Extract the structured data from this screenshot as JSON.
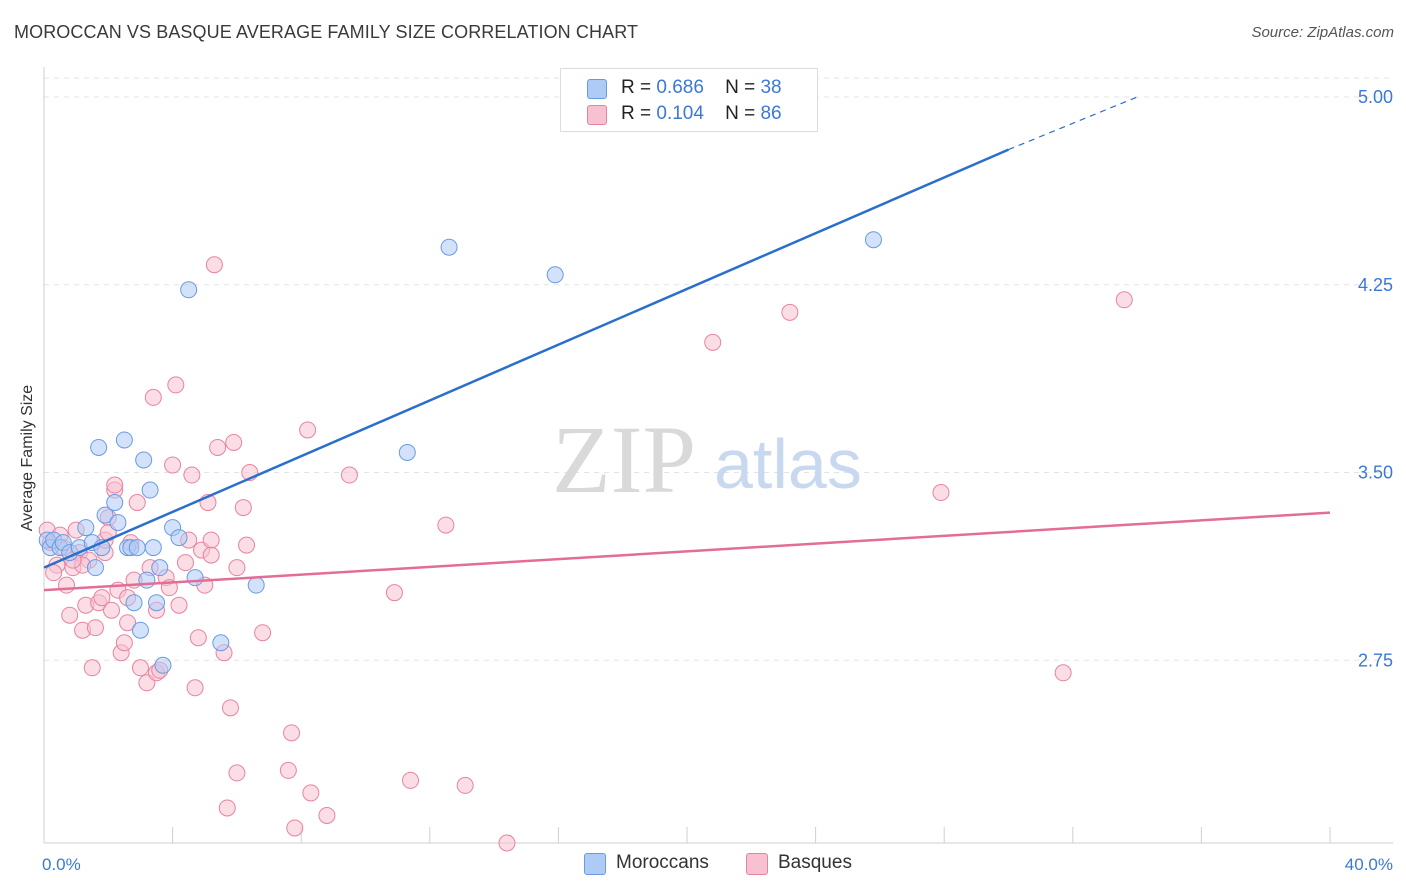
{
  "title": "MOROCCAN VS BASQUE AVERAGE FAMILY SIZE CORRELATION CHART",
  "source": "Source: ZipAtlas.com",
  "watermark": {
    "zip": "ZIP",
    "atlas": "atlas"
  },
  "legend_top": [
    {
      "r_label": "R =",
      "r_value": "0.686",
      "n_label": "N =",
      "n_value": "38"
    },
    {
      "r_label": "R =",
      "r_value": "0.104",
      "n_label": "N =",
      "n_value": "86"
    }
  ],
  "colors": {
    "moroccan_fill": "#aecbf5",
    "moroccan_stroke": "#6a9be0",
    "moroccan_line": "#2a6fcc",
    "basque_fill": "#f8c1d2",
    "basque_stroke": "#e8839f",
    "basque_line": "#e36d96",
    "tick_text": "#3b78d8",
    "grid": "#e3e3e3"
  },
  "chart_data": {
    "type": "scatter",
    "title": "MOROCCAN VS BASQUE AVERAGE FAMILY SIZE CORRELATION CHART",
    "xlabel": "",
    "ylabel": "Average Family Size",
    "xlim": [
      0,
      40
    ],
    "ylim": [
      2.02,
      5.12
    ],
    "x_tick_labels": [
      "0.0%",
      "40.0%"
    ],
    "y_ticks": [
      2.75,
      3.5,
      4.25,
      5.0
    ],
    "y_tick_labels": [
      "2.75",
      "3.50",
      "4.25",
      "5.00"
    ],
    "legend_position": "top-center",
    "series": [
      {
        "name": "Moroccans",
        "points": [
          [
            0.1,
            3.23
          ],
          [
            0.2,
            3.2
          ],
          [
            0.3,
            3.23
          ],
          [
            0.5,
            3.2
          ],
          [
            0.6,
            3.22
          ],
          [
            0.8,
            3.18
          ],
          [
            1.1,
            3.2
          ],
          [
            1.3,
            3.28
          ],
          [
            1.5,
            3.22
          ],
          [
            1.6,
            3.12
          ],
          [
            1.7,
            3.6
          ],
          [
            1.8,
            3.2
          ],
          [
            1.9,
            3.33
          ],
          [
            2.2,
            3.38
          ],
          [
            2.3,
            3.3
          ],
          [
            2.5,
            3.63
          ],
          [
            2.6,
            3.2
          ],
          [
            2.7,
            3.2
          ],
          [
            2.8,
            2.98
          ],
          [
            2.9,
            3.2
          ],
          [
            3.0,
            2.87
          ],
          [
            3.1,
            3.55
          ],
          [
            3.2,
            3.07
          ],
          [
            3.3,
            3.43
          ],
          [
            3.4,
            3.2
          ],
          [
            3.7,
            2.73
          ],
          [
            3.6,
            3.12
          ],
          [
            4.0,
            3.28
          ],
          [
            4.5,
            4.23
          ],
          [
            4.7,
            3.08
          ],
          [
            5.5,
            2.82
          ],
          [
            6.6,
            3.05
          ],
          [
            11.3,
            3.58
          ],
          [
            12.6,
            4.4
          ],
          [
            15.9,
            4.29
          ],
          [
            25.8,
            4.43
          ],
          [
            3.5,
            2.98
          ],
          [
            4.2,
            3.24
          ]
        ],
        "trend": {
          "x0": 0,
          "y0": 3.12,
          "x1": 30,
          "y1": 4.79,
          "dashed_to_x": 34,
          "dashed_to_y": 5.0
        }
      },
      {
        "name": "Basques",
        "points": [
          [
            0.1,
            3.27
          ],
          [
            0.2,
            3.22
          ],
          [
            0.4,
            3.13
          ],
          [
            0.5,
            3.25
          ],
          [
            0.6,
            3.2
          ],
          [
            0.7,
            3.05
          ],
          [
            0.8,
            2.93
          ],
          [
            0.9,
            3.12
          ],
          [
            1.0,
            3.27
          ],
          [
            1.1,
            3.18
          ],
          [
            1.2,
            2.87
          ],
          [
            1.3,
            2.97
          ],
          [
            1.4,
            3.15
          ],
          [
            1.5,
            2.72
          ],
          [
            1.6,
            2.88
          ],
          [
            1.7,
            2.98
          ],
          [
            1.8,
            3.0
          ],
          [
            1.9,
            3.18
          ],
          [
            2.0,
            3.32
          ],
          [
            2.1,
            2.95
          ],
          [
            2.2,
            3.43
          ],
          [
            2.3,
            3.03
          ],
          [
            2.4,
            2.78
          ],
          [
            2.5,
            2.82
          ],
          [
            2.6,
            3.0
          ],
          [
            2.7,
            3.22
          ],
          [
            2.8,
            3.07
          ],
          [
            2.9,
            3.38
          ],
          [
            3.0,
            2.72
          ],
          [
            3.2,
            2.66
          ],
          [
            3.3,
            3.12
          ],
          [
            3.4,
            3.8
          ],
          [
            3.5,
            2.7
          ],
          [
            3.6,
            2.71
          ],
          [
            3.8,
            3.08
          ],
          [
            4.0,
            3.53
          ],
          [
            4.1,
            3.85
          ],
          [
            4.2,
            2.97
          ],
          [
            4.4,
            3.14
          ],
          [
            4.6,
            3.49
          ],
          [
            4.7,
            2.64
          ],
          [
            4.8,
            2.84
          ],
          [
            4.9,
            3.19
          ],
          [
            5.0,
            3.05
          ],
          [
            5.1,
            3.38
          ],
          [
            5.2,
            3.23
          ],
          [
            5.3,
            4.33
          ],
          [
            5.4,
            3.6
          ],
          [
            5.6,
            2.78
          ],
          [
            5.7,
            2.16
          ],
          [
            5.8,
            2.56
          ],
          [
            5.9,
            3.62
          ],
          [
            6.0,
            3.12
          ],
          [
            6.0,
            2.3
          ],
          [
            6.2,
            3.36
          ],
          [
            6.4,
            3.5
          ],
          [
            6.8,
            2.86
          ],
          [
            7.6,
            2.31
          ],
          [
            7.7,
            2.46
          ],
          [
            7.8,
            2.08
          ],
          [
            8.2,
            3.67
          ],
          [
            8.3,
            2.22
          ],
          [
            8.8,
            2.13
          ],
          [
            9.5,
            3.49
          ],
          [
            10.9,
            3.02
          ],
          [
            11.4,
            2.27
          ],
          [
            12.5,
            3.29
          ],
          [
            13.1,
            2.25
          ],
          [
            14.4,
            2.02
          ],
          [
            20.8,
            4.02
          ],
          [
            23.2,
            4.14
          ],
          [
            27.9,
            3.42
          ],
          [
            31.7,
            2.7
          ],
          [
            33.6,
            4.19
          ],
          [
            1.2,
            3.13
          ],
          [
            2.2,
            3.45
          ],
          [
            0.3,
            3.1
          ],
          [
            1.9,
            3.23
          ],
          [
            3.5,
            2.95
          ],
          [
            4.5,
            3.23
          ],
          [
            2.6,
            2.9
          ],
          [
            0.9,
            3.15
          ],
          [
            6.3,
            3.21
          ],
          [
            5.2,
            3.17
          ],
          [
            2.0,
            3.26
          ],
          [
            3.9,
            3.04
          ]
        ],
        "trend": {
          "x0": 0,
          "y0": 3.03,
          "x1": 40,
          "y1": 3.34
        }
      }
    ]
  }
}
